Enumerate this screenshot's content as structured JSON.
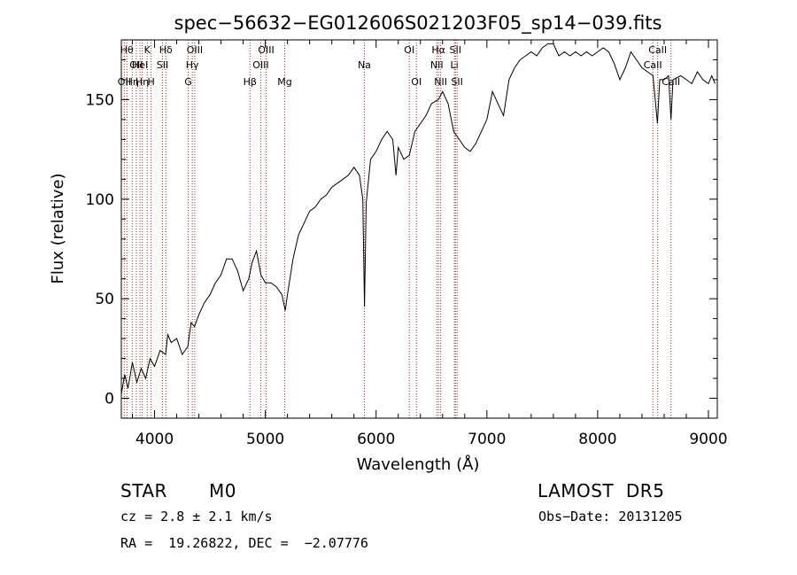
{
  "chart_data": {
    "type": "line",
    "title": "spec−56632−EG012606S021203F05_sp14−039.fits",
    "xlabel": "Wavelength (Å)",
    "ylabel": "Flux (relative)",
    "xlim": [
      3700,
      9080
    ],
    "ylim": [
      -10,
      180
    ],
    "x_ticks": [
      4000,
      5000,
      6000,
      7000,
      8000,
      9000
    ],
    "y_ticks": [
      0,
      50,
      100,
      150
    ],
    "grid": false,
    "series": [
      {
        "color": "#000000",
        "points": [
          [
            3700,
            2
          ],
          [
            3730,
            12
          ],
          [
            3760,
            5
          ],
          [
            3800,
            18
          ],
          [
            3840,
            8
          ],
          [
            3880,
            15
          ],
          [
            3920,
            10
          ],
          [
            3960,
            20
          ],
          [
            4000,
            16
          ],
          [
            4050,
            24
          ],
          [
            4100,
            22
          ],
          [
            4120,
            32
          ],
          [
            4150,
            28
          ],
          [
            4200,
            30
          ],
          [
            4250,
            22
          ],
          [
            4300,
            26
          ],
          [
            4330,
            38
          ],
          [
            4360,
            36
          ],
          [
            4400,
            42
          ],
          [
            4450,
            48
          ],
          [
            4500,
            52
          ],
          [
            4550,
            58
          ],
          [
            4600,
            62
          ],
          [
            4650,
            70
          ],
          [
            4700,
            70
          ],
          [
            4750,
            64
          ],
          [
            4800,
            54
          ],
          [
            4850,
            60
          ],
          [
            4880,
            68
          ],
          [
            4920,
            74
          ],
          [
            4960,
            62
          ],
          [
            5000,
            58
          ],
          [
            5050,
            58
          ],
          [
            5100,
            56
          ],
          [
            5150,
            52
          ],
          [
            5180,
            44
          ],
          [
            5200,
            52
          ],
          [
            5250,
            70
          ],
          [
            5300,
            82
          ],
          [
            5350,
            88
          ],
          [
            5400,
            94
          ],
          [
            5450,
            96
          ],
          [
            5500,
            100
          ],
          [
            5550,
            102
          ],
          [
            5600,
            106
          ],
          [
            5650,
            108
          ],
          [
            5700,
            110
          ],
          [
            5750,
            112
          ],
          [
            5800,
            116
          ],
          [
            5850,
            112
          ],
          [
            5880,
            100
          ],
          [
            5895,
            46
          ],
          [
            5910,
            98
          ],
          [
            5950,
            120
          ],
          [
            6000,
            124
          ],
          [
            6050,
            130
          ],
          [
            6100,
            134
          ],
          [
            6150,
            130
          ],
          [
            6180,
            112
          ],
          [
            6200,
            126
          ],
          [
            6250,
            120
          ],
          [
            6300,
            122
          ],
          [
            6350,
            134
          ],
          [
            6400,
            138
          ],
          [
            6450,
            142
          ],
          [
            6500,
            148
          ],
          [
            6563,
            150
          ],
          [
            6600,
            154
          ],
          [
            6650,
            148
          ],
          [
            6700,
            134
          ],
          [
            6750,
            130
          ],
          [
            6800,
            126
          ],
          [
            6850,
            124
          ],
          [
            6900,
            128
          ],
          [
            6950,
            134
          ],
          [
            7000,
            140
          ],
          [
            7050,
            154
          ],
          [
            7100,
            148
          ],
          [
            7150,
            142
          ],
          [
            7200,
            160
          ],
          [
            7250,
            166
          ],
          [
            7300,
            170
          ],
          [
            7350,
            172
          ],
          [
            7400,
            174
          ],
          [
            7450,
            172
          ],
          [
            7500,
            176
          ],
          [
            7550,
            178
          ],
          [
            7600,
            178
          ],
          [
            7650,
            172
          ],
          [
            7700,
            174
          ],
          [
            7750,
            172
          ],
          [
            7800,
            174
          ],
          [
            7850,
            172
          ],
          [
            7900,
            174
          ],
          [
            7950,
            172
          ],
          [
            8000,
            174
          ],
          [
            8050,
            176
          ],
          [
            8100,
            174
          ],
          [
            8150,
            168
          ],
          [
            8200,
            160
          ],
          [
            8250,
            166
          ],
          [
            8300,
            174
          ],
          [
            8350,
            170
          ],
          [
            8400,
            166
          ],
          [
            8450,
            164
          ],
          [
            8500,
            162
          ],
          [
            8540,
            138
          ],
          [
            8560,
            160
          ],
          [
            8600,
            160
          ],
          [
            8640,
            162
          ],
          [
            8662,
            140
          ],
          [
            8680,
            160
          ],
          [
            8750,
            162
          ],
          [
            8800,
            160
          ],
          [
            8850,
            158
          ],
          [
            8900,
            164
          ],
          [
            8950,
            160
          ],
          [
            9000,
            158
          ],
          [
            9030,
            162
          ],
          [
            9060,
            158
          ]
        ]
      }
    ],
    "lines": [
      {
        "wl": 3727,
        "label": "OII",
        "row": 3
      },
      {
        "wl": 3750,
        "label": "Hθ",
        "row": 1
      },
      {
        "wl": 3798,
        "label": "Hη",
        "row": 3
      },
      {
        "wl": 3835,
        "label": "OII",
        "row": 2
      },
      {
        "wl": 3869,
        "label": "HeI",
        "row": 2
      },
      {
        "wl": 3889,
        "label": "Hη",
        "row": 3
      },
      {
        "wl": 3934,
        "label": "K",
        "row": 1
      },
      {
        "wl": 3969,
        "label": "H",
        "row": 3
      },
      {
        "wl": 4072,
        "label": "SII",
        "row": 2
      },
      {
        "wl": 4102,
        "label": "Hδ",
        "row": 1
      },
      {
        "wl": 4304,
        "label": "G",
        "row": 3
      },
      {
        "wl": 4341,
        "label": "Hγ",
        "row": 2
      },
      {
        "wl": 4363,
        "label": "OIII",
        "row": 1
      },
      {
        "wl": 4861,
        "label": "Hβ",
        "row": 3
      },
      {
        "wl": 4959,
        "label": "OIII",
        "row": 2
      },
      {
        "wl": 5007,
        "label": "OIII",
        "row": 1
      },
      {
        "wl": 5175,
        "label": "Mg",
        "row": 3
      },
      {
        "wl": 5894,
        "label": "Na",
        "row": 2
      },
      {
        "wl": 6300,
        "label": "OI",
        "row": 1
      },
      {
        "wl": 6364,
        "label": "OI",
        "row": 3
      },
      {
        "wl": 6548,
        "label": "NII",
        "row": 2
      },
      {
        "wl": 6563,
        "label": "Hα",
        "row": 1
      },
      {
        "wl": 6583,
        "label": "NII",
        "row": 3
      },
      {
        "wl": 6707,
        "label": "Li",
        "row": 2
      },
      {
        "wl": 6716,
        "label": "SII",
        "row": 1
      },
      {
        "wl": 6731,
        "label": "SII",
        "row": 3
      },
      {
        "wl": 8498,
        "label": "CaII",
        "row": 2
      },
      {
        "wl": 8542,
        "label": "CaII",
        "row": 1
      },
      {
        "wl": 8662,
        "label": "CaII",
        "row": 3
      }
    ]
  },
  "info": {
    "class_label": "STAR",
    "subclass": "M0",
    "survey": "LAMOST  DR5",
    "cz": "cz = 2.8 ± 2.1 km/s",
    "obs_date": "Obs−Date: 20131205",
    "coords": "RA =  19.26822, DEC =  −2.07776"
  }
}
